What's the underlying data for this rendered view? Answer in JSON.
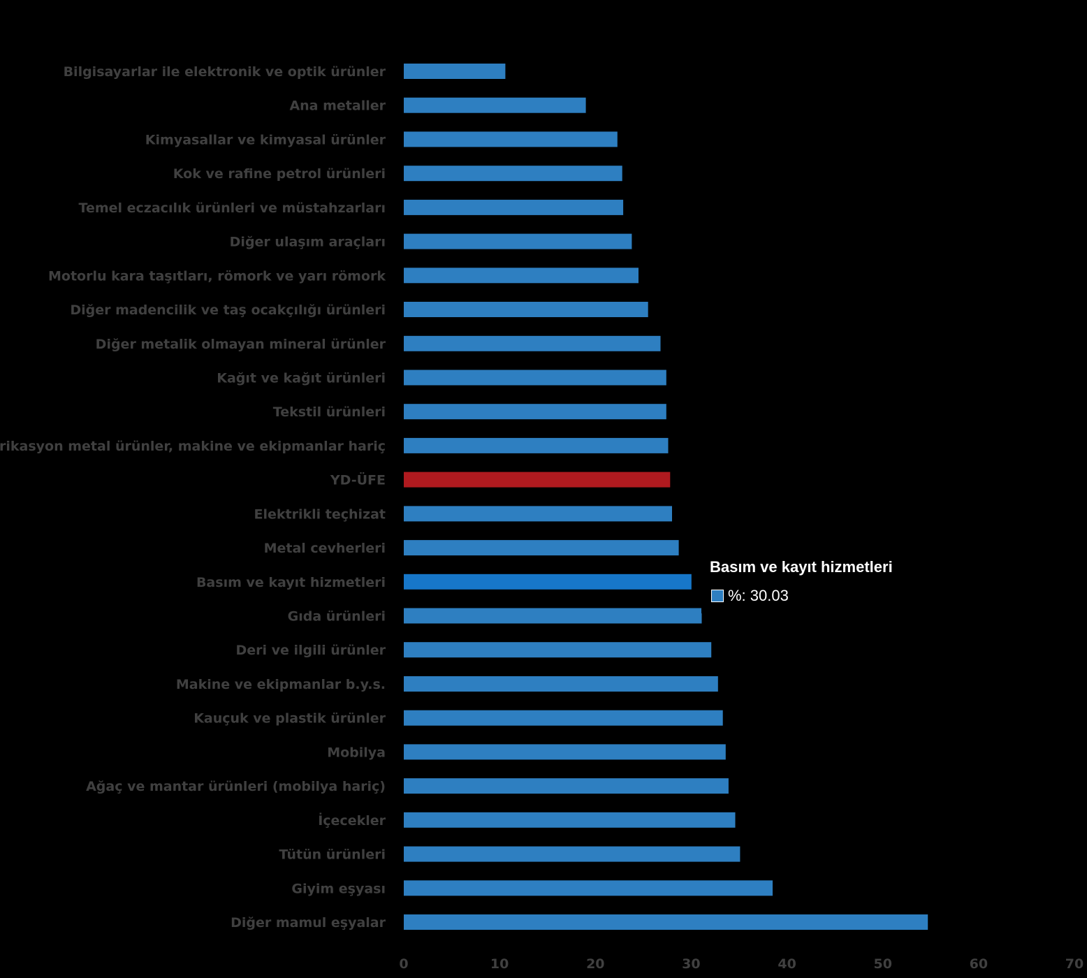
{
  "chart_data": {
    "type": "bar",
    "orientation": "horizontal",
    "categories": [
      "Bilgisayarlar ile elektronik ve optik ürünler",
      "Ana metaller",
      "Kimyasallar ve kimyasal ürünler",
      "Kok ve rafine petrol ürünleri",
      "Temel eczacılık ürünleri ve müstahzarları",
      "Diğer ulaşım araçları",
      "Motorlu kara taşıtları, römork ve yarı römork",
      "Diğer madencilik ve taş ocakçılığı ürünleri",
      "Diğer metalik olmayan mineral ürünler",
      "Kağıt ve kağıt ürünleri",
      "Tekstil ürünleri",
      "Fabrikasyon metal ürünler, makine ve ekipmanlar hariç",
      "YD-ÜFE",
      "Elektrikli teçhizat",
      "Metal cevherleri",
      "Basım ve kayıt hizmetleri",
      "Gıda ürünleri",
      "Deri ve ilgili ürünler",
      "Makine ve ekipmanlar b.y.s.",
      "Kauçuk ve plastik ürünler",
      "Mobilya",
      "Ağaç ve mantar ürünleri (mobilya hariç)",
      "İçecekler",
      "Tütün ürünleri",
      "Giyim eşyası",
      "Diğer mamul eşyalar"
    ],
    "values": [
      10.6,
      19.0,
      22.3,
      22.8,
      22.9,
      23.8,
      24.5,
      25.5,
      26.8,
      27.4,
      27.4,
      27.6,
      27.8,
      28.0,
      28.7,
      30.03,
      31.1,
      32.1,
      32.8,
      33.3,
      33.6,
      33.9,
      34.6,
      35.1,
      38.5,
      54.7
    ],
    "highlight": {
      "category": "YD-ÜFE",
      "color": "#b01a1f"
    },
    "hovered": {
      "category": "Basım ve kayıt hizmetleri",
      "color": "#1777c9"
    },
    "bar_color": "#2e7fc1",
    "xlim": [
      0,
      70
    ],
    "x_ticks": [
      0,
      10,
      20,
      30,
      40,
      50,
      60,
      70
    ],
    "grid": false,
    "title": "",
    "xlabel": "",
    "ylabel": ""
  },
  "tooltip": {
    "title": "Basım ve kayıt hizmetleri",
    "row": "%: 30.03",
    "swatch_color": "#2e7fc1"
  }
}
